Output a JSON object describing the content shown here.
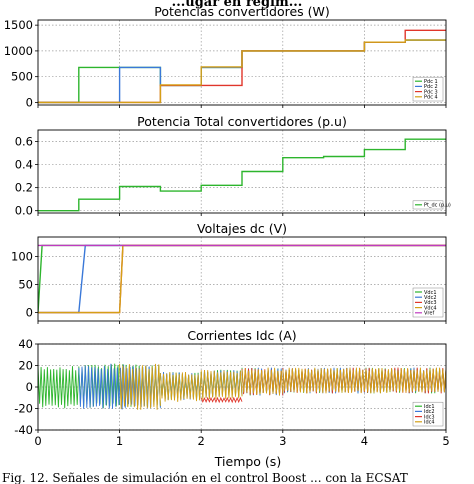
{
  "header_fragment": "...ugar en régim...",
  "caption": "Fig. 12. Señales de simulación en el control Boost ... con la ECSAT",
  "xlabel": "Tiempo (s)",
  "chart_data": [
    {
      "type": "line",
      "title": "Potencias convertidores (W)",
      "xlim": [
        0,
        5
      ],
      "ylim": [
        -50,
        1600
      ],
      "xticks": [
        0,
        1,
        2,
        3,
        4,
        5
      ],
      "yticks": [
        0,
        500,
        1000,
        1500
      ],
      "grid": true,
      "legend_position": "bottom-right",
      "series": [
        {
          "name": "Pdc 1",
          "color": "#2db52d",
          "x": [
            0,
            0.5,
            0.5,
            1.5,
            1.5,
            2,
            2,
            2.5,
            2.5,
            3,
            3,
            3.5,
            3.5,
            4,
            4,
            4.5,
            4.5,
            5
          ],
          "y": [
            0,
            0,
            680,
            680,
            330,
            330,
            680,
            680,
            1000,
            1000,
            1000,
            1000,
            1000,
            1000,
            1170,
            1170,
            1210,
            1210
          ]
        },
        {
          "name": "Pdc 2",
          "color": "#3a78d8",
          "x": [
            0,
            1,
            1,
            1.5,
            1.5,
            2,
            2,
            2.5,
            2.5,
            3,
            3,
            3.5,
            3.5,
            4,
            4,
            4.5,
            4.5,
            5
          ],
          "y": [
            0,
            0,
            680,
            680,
            330,
            330,
            680,
            680,
            1000,
            1000,
            1000,
            1000,
            1000,
            1000,
            1170,
            1170,
            1210,
            1210
          ]
        },
        {
          "name": "Pdc 3",
          "color": "#e0362b",
          "x": [
            0,
            1.5,
            1.5,
            2,
            2,
            2.5,
            2.5,
            3,
            3,
            3.5,
            3.5,
            4,
            4,
            4.5,
            4.5,
            5
          ],
          "y": [
            0,
            0,
            330,
            330,
            330,
            330,
            1000,
            1000,
            1000,
            1000,
            1000,
            1000,
            1170,
            1170,
            1400,
            1400
          ]
        },
        {
          "name": "Pdc 4",
          "color": "#d4a017",
          "x": [
            0,
            1.5,
            1.5,
            2,
            2,
            2.5,
            2.5,
            3,
            3,
            3.5,
            3.5,
            4,
            4,
            4.5,
            4.5,
            5
          ],
          "y": [
            0,
            0,
            340,
            340,
            690,
            690,
            1000,
            1000,
            1000,
            1000,
            1000,
            1000,
            1170,
            1170,
            1210,
            1210
          ]
        }
      ]
    },
    {
      "type": "line",
      "title": "Potencia Total convertidores (p.u)",
      "xlim": [
        0,
        5
      ],
      "ylim": [
        -0.02,
        0.7
      ],
      "xticks": [
        0,
        1,
        2,
        3,
        4,
        5
      ],
      "yticks": [
        0,
        0.2,
        0.4,
        0.6
      ],
      "ytick_labels": [
        "0.0",
        "0.2",
        "0.4",
        "0.6"
      ],
      "grid": true,
      "legend_position": "bottom-right",
      "series": [
        {
          "name": "Pt_dc (p.u)",
          "color": "#2db52d",
          "x": [
            0,
            0.5,
            0.5,
            1,
            1,
            1.5,
            1.5,
            2,
            2,
            2.5,
            2.5,
            3,
            3,
            3.5,
            3.5,
            4,
            4,
            4.5,
            4.5,
            5
          ],
          "y": [
            0,
            0,
            0.1,
            0.1,
            0.21,
            0.21,
            0.17,
            0.17,
            0.22,
            0.22,
            0.34,
            0.34,
            0.46,
            0.46,
            0.47,
            0.47,
            0.53,
            0.53,
            0.62,
            0.62
          ]
        }
      ]
    },
    {
      "type": "line",
      "title": "Voltajes dc (V)",
      "xlim": [
        0,
        5
      ],
      "ylim": [
        -15,
        135
      ],
      "xticks": [
        0,
        1,
        2,
        3,
        4,
        5
      ],
      "yticks": [
        0,
        50,
        100
      ],
      "grid": true,
      "legend_position": "bottom-right",
      "series": [
        {
          "name": "Vdc1",
          "color": "#2db52d",
          "x": [
            0,
            0.05,
            5
          ],
          "y": [
            0,
            120,
            120
          ]
        },
        {
          "name": "Vdc2",
          "color": "#3a78d8",
          "x": [
            0,
            0.5,
            0.58,
            5
          ],
          "y": [
            0,
            0,
            120,
            120
          ]
        },
        {
          "name": "Vdc3",
          "color": "#e0362b",
          "x": [
            0,
            1,
            1.04,
            5
          ],
          "y": [
            0,
            0,
            120,
            120
          ]
        },
        {
          "name": "Vdc4",
          "color": "#d4a017",
          "x": [
            0,
            1,
            1.04,
            5
          ],
          "y": [
            0,
            0,
            120,
            120
          ]
        },
        {
          "name": "Vref",
          "color": "#c03ac0",
          "x": [
            0,
            5
          ],
          "y": [
            120,
            120
          ]
        }
      ]
    },
    {
      "type": "line",
      "title": "Corrientes Idc (A)",
      "xlim": [
        0,
        5
      ],
      "ylim": [
        -40,
        40
      ],
      "xticks": [
        0,
        1,
        2,
        3,
        4,
        5
      ],
      "yticks": [
        -40,
        -20,
        0,
        20,
        40
      ],
      "grid": true,
      "legend_position": "bottom-right",
      "series": [
        {
          "name": "Idc1",
          "color": "#2db52d",
          "bands": [
            [
              0,
              0.5,
              -20,
              20
            ],
            [
              0.5,
              1,
              -20,
              22
            ],
            [
              1,
              1.5,
              -20,
              22
            ],
            [
              1.5,
              2,
              -12,
              14
            ],
            [
              2,
              2.5,
              -10,
              16
            ],
            [
              2.5,
              3,
              -8,
              18
            ],
            [
              3,
              5,
              -6,
              18
            ]
          ]
        },
        {
          "name": "Idc2",
          "color": "#3a78d8",
          "bands": [
            [
              0.5,
              1.05,
              -22,
              22
            ],
            [
              1.05,
              1.5,
              -20,
              22
            ],
            [
              1.5,
              2,
              -12,
              14
            ],
            [
              2,
              2.5,
              -10,
              16
            ],
            [
              2.5,
              3,
              -8,
              18
            ],
            [
              3,
              5,
              -6,
              18
            ]
          ]
        },
        {
          "name": "Idc3",
          "color": "#e0362b",
          "bands": [
            [
              2,
              2.5,
              -14,
              -10
            ],
            [
              2.5,
              3,
              -8,
              18
            ],
            [
              3,
              5,
              -6,
              18
            ]
          ]
        },
        {
          "name": "Idc4",
          "color": "#d4a017",
          "bands": [
            [
              1,
              1.5,
              -22,
              22
            ],
            [
              1.5,
              2,
              -14,
              14
            ],
            [
              2,
              2.5,
              -12,
              16
            ],
            [
              2.5,
              3,
              -8,
              18
            ],
            [
              3,
              5,
              -6,
              18
            ]
          ]
        }
      ]
    }
  ]
}
